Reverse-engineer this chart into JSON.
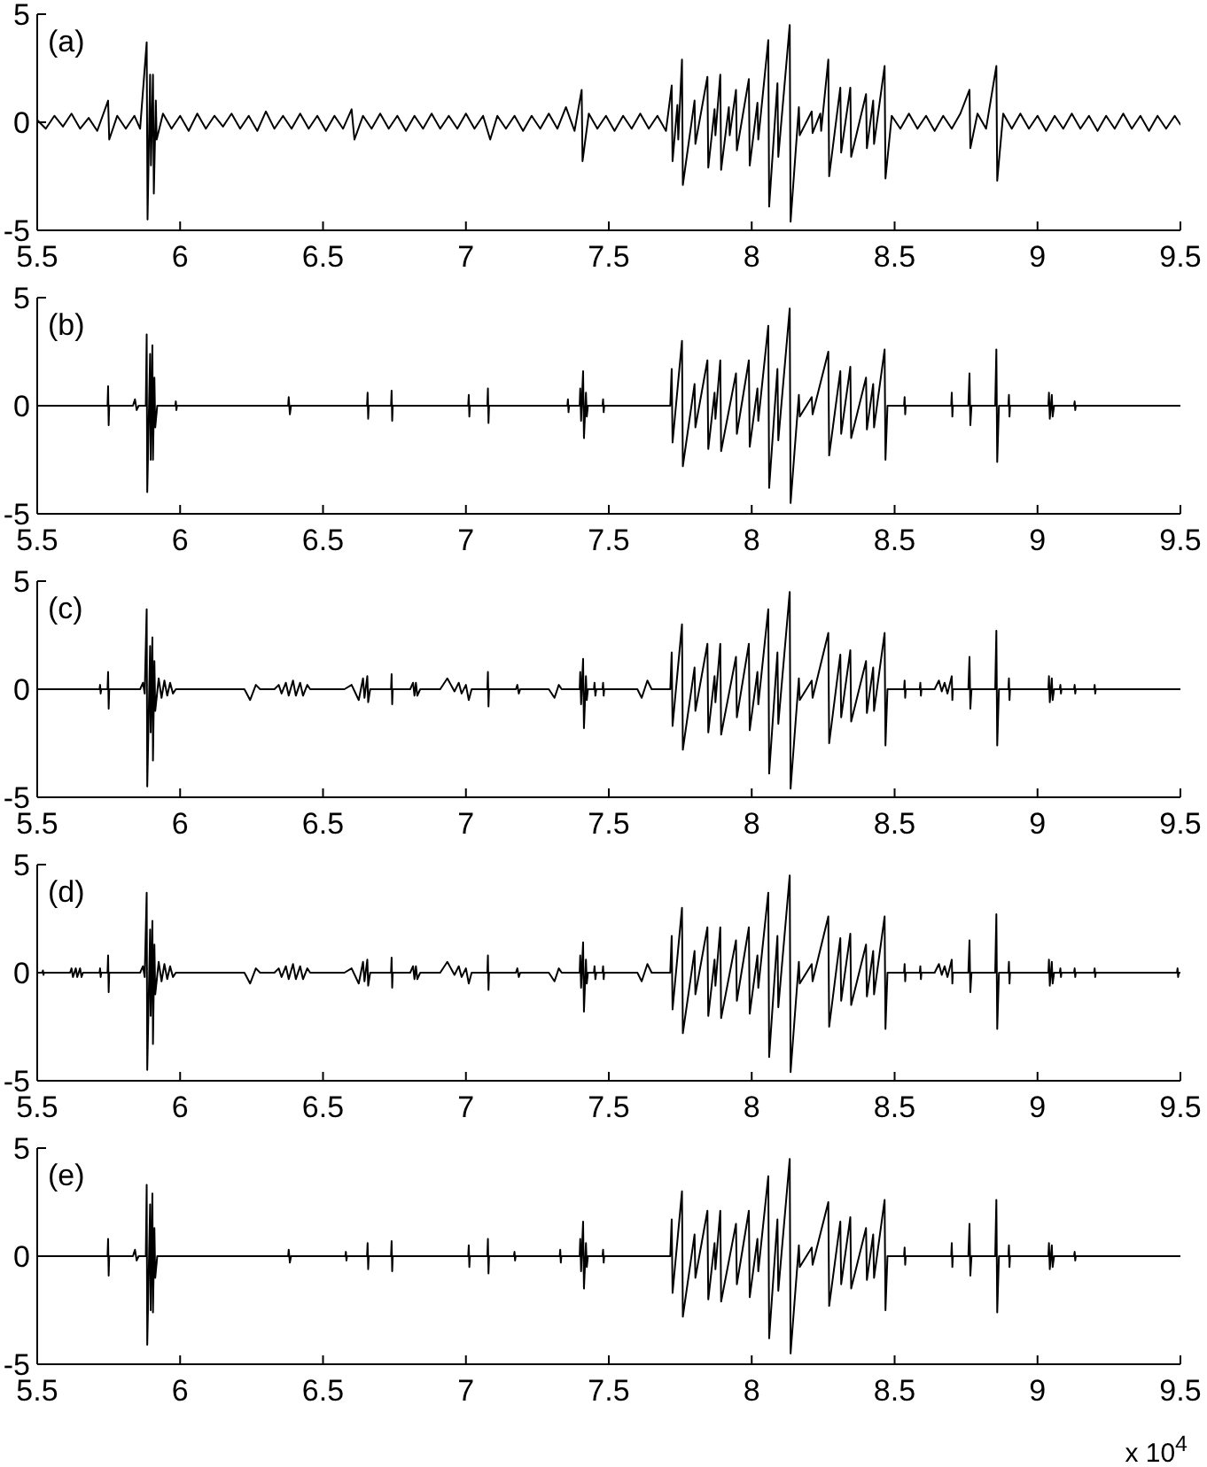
{
  "chart_data": [
    {
      "type": "line",
      "annotations": [
        "(a)"
      ],
      "color": "#000000",
      "xlim": [
        5.5,
        9.5
      ],
      "xticks": [
        5.5,
        6,
        6.5,
        7,
        7.5,
        8,
        8.5,
        9,
        9.5
      ],
      "ylim": [
        -5,
        5
      ],
      "yticks": [
        -5,
        0,
        5
      ],
      "x": [
        5.5,
        5.53,
        5.56,
        5.59,
        5.62,
        5.65,
        5.68,
        5.71,
        5.748,
        5.752,
        5.78,
        5.81,
        5.84,
        5.86,
        5.883,
        5.886,
        5.895,
        5.898,
        5.905,
        5.908,
        5.915,
        5.918,
        5.94,
        5.97,
        6,
        6.03,
        6.06,
        6.09,
        6.12,
        6.15,
        6.18,
        6.21,
        6.24,
        6.27,
        6.3,
        6.33,
        6.36,
        6.39,
        6.42,
        6.45,
        6.48,
        6.51,
        6.54,
        6.57,
        6.6,
        6.61,
        6.64,
        6.67,
        6.7,
        6.73,
        6.76,
        6.79,
        6.82,
        6.85,
        6.88,
        6.91,
        6.94,
        6.97,
        7,
        7.03,
        7.06,
        7.085,
        7.11,
        7.14,
        7.17,
        7.2,
        7.23,
        7.26,
        7.29,
        7.32,
        7.35,
        7.38,
        7.405,
        7.408,
        7.43,
        7.46,
        7.49,
        7.52,
        7.55,
        7.58,
        7.61,
        7.64,
        7.67,
        7.7,
        7.72,
        7.723,
        7.74,
        7.743,
        7.756,
        7.759,
        7.8,
        7.803,
        7.845,
        7.848,
        7.87,
        7.873,
        7.89,
        7.893,
        7.92,
        7.923,
        7.945,
        7.948,
        7.99,
        7.993,
        8.02,
        8.023,
        8.058,
        8.061,
        8.09,
        8.093,
        8.133,
        8.136,
        8.165,
        8.168,
        8.21,
        8.213,
        8.24,
        8.243,
        8.268,
        8.271,
        8.31,
        8.313,
        8.345,
        8.348,
        8.4,
        8.403,
        8.425,
        8.428,
        8.465,
        8.468,
        8.49,
        8.52,
        8.55,
        8.58,
        8.61,
        8.64,
        8.67,
        8.7,
        8.73,
        8.762,
        8.765,
        8.79,
        8.82,
        8.856,
        8.859,
        8.88,
        8.91,
        8.94,
        8.97,
        9,
        9.03,
        9.06,
        9.09,
        9.12,
        9.15,
        9.18,
        9.21,
        9.24,
        9.27,
        9.3,
        9.33,
        9.36,
        9.39,
        9.42,
        9.45,
        9.48,
        9.5
      ],
      "values": [
        0.1,
        -0.3,
        0.3,
        -0.2,
        0.4,
        -0.3,
        0.2,
        -0.4,
        1,
        -0.8,
        0.3,
        -0.3,
        0.3,
        -0.3,
        3.7,
        -4.5,
        2.2,
        -2,
        2.2,
        -3.3,
        1,
        -0.8,
        0.4,
        -0.3,
        0.3,
        -0.4,
        0.4,
        -0.3,
        0.3,
        -0.2,
        0.4,
        -0.3,
        0.3,
        -0.4,
        0.5,
        -0.3,
        0.3,
        -0.3,
        0.4,
        -0.3,
        0.3,
        -0.4,
        0.3,
        -0.3,
        0.6,
        -0.8,
        0.3,
        -0.3,
        0.4,
        -0.3,
        0.3,
        -0.4,
        0.3,
        -0.3,
        0.4,
        -0.3,
        0.3,
        -0.3,
        0.4,
        -0.3,
        0.3,
        -0.8,
        0.3,
        -0.3,
        0.3,
        -0.4,
        0.3,
        -0.3,
        0.4,
        -0.3,
        0.7,
        -0.4,
        1.5,
        -1.8,
        0.4,
        -0.3,
        0.3,
        -0.4,
        0.3,
        -0.3,
        0.4,
        -0.3,
        0.3,
        -0.4,
        1.7,
        -1.8,
        0.8,
        -0.8,
        2.9,
        -2.9,
        1,
        -1,
        2.1,
        -2.1,
        0.6,
        -0.6,
        2.2,
        -2.2,
        0.7,
        -0.6,
        1.5,
        -1.3,
        2,
        -2,
        0.9,
        -0.8,
        3.8,
        -3.9,
        1.8,
        -1.6,
        4.5,
        -4.6,
        0.7,
        -0.6,
        0.5,
        -0.5,
        0.4,
        -0.4,
        2.9,
        -2.5,
        1.6,
        -1.4,
        1.6,
        -1.6,
        1.3,
        -1.2,
        1,
        -1,
        2.6,
        -2.6,
        0.3,
        -0.3,
        0.4,
        -0.3,
        0.3,
        -0.4,
        0.3,
        -0.3,
        0.4,
        1.5,
        -1.2,
        0.4,
        -0.3,
        2.6,
        -2.7,
        0.4,
        -0.3,
        0.4,
        -0.3,
        0.3,
        -0.4,
        0.3,
        -0.3,
        0.4,
        -0.3,
        0.3,
        -0.4,
        0.3,
        -0.3,
        0.4,
        -0.3,
        0.3,
        -0.4,
        0.3,
        -0.3,
        0.3,
        -0.1
      ]
    },
    {
      "type": "line",
      "annotations": [
        "(b)"
      ],
      "color": "#000000",
      "xlim": [
        5.5,
        9.5
      ],
      "xticks": [
        5.5,
        6,
        6.5,
        7,
        7.5,
        8,
        8.5,
        9,
        9.5
      ],
      "ylim": [
        -5,
        5
      ],
      "yticks": [
        -5,
        0,
        5
      ],
      "x": [
        5.5,
        5.746,
        5.748,
        5.75,
        5.752,
        5.835,
        5.842,
        5.848,
        5.855,
        5.88,
        5.883,
        5.885,
        5.895,
        5.897,
        5.903,
        5.905,
        5.91,
        5.913,
        5.92,
        5.983,
        5.985,
        5.987,
        5.989,
        6.378,
        6.38,
        6.384,
        6.388,
        6.654,
        6.656,
        6.658,
        6.66,
        6.738,
        6.74,
        6.742,
        6.744,
        7.008,
        7.01,
        7.012,
        7.014,
        7.075,
        7.077,
        7.079,
        7.081,
        7.355,
        7.357,
        7.359,
        7.361,
        7.398,
        7.4,
        7.403,
        7.41,
        7.413,
        7.42,
        7.423,
        7.427,
        7.478,
        7.48,
        7.482,
        7.484,
        7.715,
        7.72,
        7.723,
        7.756,
        7.759,
        7.8,
        7.803,
        7.845,
        7.848,
        7.87,
        7.873,
        7.89,
        7.893,
        7.945,
        7.948,
        7.99,
        7.993,
        8.02,
        8.023,
        8.058,
        8.061,
        8.09,
        8.093,
        8.133,
        8.136,
        8.165,
        8.168,
        8.21,
        8.213,
        8.268,
        8.271,
        8.31,
        8.313,
        8.345,
        8.348,
        8.4,
        8.403,
        8.425,
        8.428,
        8.465,
        8.468,
        8.475,
        8.533,
        8.535,
        8.537,
        8.539,
        8.698,
        8.7,
        8.702,
        8.704,
        8.758,
        8.762,
        8.765,
        8.769,
        8.852,
        8.856,
        8.859,
        8.865,
        8.898,
        8.9,
        8.902,
        8.904,
        9.038,
        9.04,
        9.043,
        9.05,
        9.053,
        9.058,
        9.128,
        9.13,
        9.132,
        9.134,
        9.5
      ],
      "values": [
        0,
        0,
        0.9,
        -0.9,
        0,
        0,
        0.3,
        -0.2,
        0,
        0,
        3.3,
        -4,
        2.4,
        -2.5,
        2.8,
        -2.5,
        1.3,
        -1,
        0,
        0,
        0.2,
        -0.2,
        0,
        0,
        0.4,
        -0.4,
        0,
        0,
        0.6,
        -0.6,
        0,
        0,
        0.7,
        -0.7,
        0,
        0,
        0.5,
        -0.5,
        0,
        0,
        0.8,
        -0.8,
        0,
        0,
        0.3,
        -0.3,
        0,
        0,
        0.8,
        -0.7,
        1.6,
        -1.5,
        0.6,
        -0.5,
        0,
        0,
        0.3,
        -0.3,
        0,
        0,
        1.7,
        -1.7,
        3,
        -2.8,
        1,
        -1,
        2.1,
        -2,
        0.6,
        -0.6,
        2.1,
        -2.1,
        1.5,
        -1.3,
        2.1,
        -1.9,
        0.8,
        -0.7,
        3.7,
        -3.8,
        1.7,
        -1.6,
        4.5,
        -4.5,
        0.5,
        -0.5,
        0.4,
        -0.4,
        2.5,
        -2.3,
        1.6,
        -1.3,
        1.8,
        -1.5,
        1.3,
        -1.1,
        1,
        -1,
        2.6,
        -2.5,
        0,
        0,
        0.4,
        -0.4,
        0,
        0,
        0.6,
        -0.5,
        0,
        0,
        1.5,
        -0.9,
        0,
        0,
        2.6,
        -2.6,
        0,
        0,
        0.5,
        -0.5,
        0,
        0,
        0.6,
        -0.6,
        0.5,
        -0.5,
        0,
        0,
        0.2,
        -0.2,
        0,
        0
      ]
    },
    {
      "type": "line",
      "annotations": [
        "(c)"
      ],
      "color": "#000000",
      "xlim": [
        5.5,
        9.5
      ],
      "xticks": [
        5.5,
        6,
        6.5,
        7,
        7.5,
        8,
        8.5,
        9,
        9.5
      ],
      "ylim": [
        -5,
        5
      ],
      "yticks": [
        -5,
        0,
        5
      ],
      "x": [
        5.5,
        5.718,
        5.72,
        5.722,
        5.724,
        5.746,
        5.748,
        5.75,
        5.752,
        5.86,
        5.87,
        5.876,
        5.883,
        5.885,
        5.895,
        5.897,
        5.903,
        5.905,
        5.91,
        5.913,
        5.925,
        5.935,
        5.945,
        5.955,
        5.965,
        5.975,
        5.985,
        6.225,
        6.245,
        6.265,
        6.28,
        6.33,
        6.345,
        6.355,
        6.37,
        6.38,
        6.395,
        6.405,
        6.42,
        6.43,
        6.445,
        6.455,
        6.575,
        6.6,
        6.625,
        6.64,
        6.645,
        6.655,
        6.658,
        6.665,
        6.738,
        6.74,
        6.742,
        6.744,
        6.805,
        6.815,
        6.82,
        6.825,
        6.83,
        6.84,
        6.91,
        6.935,
        6.96,
        6.975,
        6.985,
        7,
        7.01,
        7.02,
        7.075,
        7.077,
        7.079,
        7.081,
        7.175,
        7.18,
        7.185,
        7.19,
        7.29,
        7.31,
        7.325,
        7.335,
        7.398,
        7.4,
        7.403,
        7.41,
        7.413,
        7.42,
        7.423,
        7.427,
        7.448,
        7.45,
        7.453,
        7.456,
        7.478,
        7.48,
        7.482,
        7.484,
        7.6,
        7.615,
        7.635,
        7.65,
        7.715,
        7.72,
        7.723,
        7.756,
        7.759,
        7.8,
        7.803,
        7.845,
        7.848,
        7.87,
        7.873,
        7.89,
        7.893,
        7.945,
        7.948,
        7.99,
        7.993,
        8.02,
        8.023,
        8.058,
        8.061,
        8.09,
        8.093,
        8.133,
        8.136,
        8.165,
        8.168,
        8.21,
        8.213,
        8.268,
        8.271,
        8.31,
        8.313,
        8.345,
        8.348,
        8.4,
        8.403,
        8.425,
        8.428,
        8.465,
        8.468,
        8.475,
        8.533,
        8.535,
        8.537,
        8.539,
        8.588,
        8.59,
        8.592,
        8.594,
        8.64,
        8.655,
        8.665,
        8.675,
        8.685,
        8.7,
        8.702,
        8.704,
        8.758,
        8.762,
        8.765,
        8.769,
        8.852,
        8.856,
        8.859,
        8.865,
        8.898,
        8.9,
        8.902,
        8.904,
        9.038,
        9.04,
        9.043,
        9.05,
        9.053,
        9.058,
        9.078,
        9.08,
        9.082,
        9.084,
        9.128,
        9.13,
        9.132,
        9.134,
        9.198,
        9.2,
        9.202,
        9.204,
        9.5
      ],
      "values": [
        0,
        0,
        0.2,
        -0.2,
        0,
        0,
        0.8,
        -0.9,
        0,
        0,
        0.3,
        -0.2,
        3.7,
        -4.5,
        2,
        -2,
        2.4,
        -3.3,
        1.3,
        -1,
        0.5,
        -0.4,
        0.4,
        -0.3,
        0.3,
        -0.2,
        0,
        0,
        -0.5,
        0.2,
        0,
        0,
        0.2,
        -0.2,
        0.3,
        -0.3,
        0.4,
        -0.3,
        0.3,
        -0.3,
        0.2,
        0,
        0,
        0.2,
        -0.5,
        0.5,
        -0.4,
        0.6,
        -0.6,
        0,
        0,
        0.7,
        -0.7,
        0,
        0,
        0.3,
        -0.3,
        0.3,
        -0.3,
        0,
        0,
        0.5,
        -0.1,
        0.3,
        -0.2,
        0.2,
        -0.5,
        0,
        0,
        0.8,
        -0.8,
        0,
        0,
        0.2,
        -0.2,
        0,
        0,
        -0.4,
        0.2,
        0,
        0,
        0.8,
        -0.7,
        1.4,
        -1.8,
        0.6,
        -0.5,
        0,
        0,
        0.3,
        -0.3,
        0,
        0,
        0.3,
        -0.3,
        0,
        0,
        -0.4,
        0.4,
        0,
        0,
        1.7,
        -1.7,
        3,
        -2.8,
        1,
        -1,
        2.1,
        -2,
        0.6,
        -0.6,
        2.1,
        -2.1,
        1.5,
        -1.3,
        2.1,
        -1.9,
        0.8,
        -0.7,
        3.7,
        -3.9,
        1.7,
        -1.6,
        4.5,
        -4.6,
        0.5,
        -0.5,
        0.4,
        -0.4,
        2.6,
        -2.5,
        1.6,
        -1.3,
        1.8,
        -1.5,
        1.3,
        -1.1,
        1,
        -1,
        2.6,
        -2.6,
        0,
        0,
        0.4,
        -0.4,
        0,
        0,
        0.3,
        -0.3,
        0,
        0,
        0.4,
        -0.1,
        0.3,
        -0.2,
        0.6,
        -0.5,
        0,
        0,
        1.5,
        -0.9,
        0,
        0,
        2.7,
        -2.6,
        0,
        0,
        0.5,
        -0.5,
        0,
        0,
        0.6,
        -0.6,
        0.5,
        -0.5,
        0,
        0,
        0.2,
        -0.2,
        0,
        0,
        0.2,
        -0.2,
        0,
        0,
        0.2,
        -0.2,
        0,
        0
      ]
    },
    {
      "type": "line",
      "annotations": [
        "(d)"
      ],
      "color": "#000000",
      "xlim": [
        5.5,
        9.5
      ],
      "xticks": [
        5.5,
        6,
        6.5,
        7,
        7.5,
        8,
        8.5,
        9,
        9.5
      ],
      "ylim": [
        -5,
        5
      ],
      "yticks": [
        -5,
        0,
        5
      ],
      "x": [
        5.5,
        5.518,
        5.52,
        5.522,
        5.524,
        5.615,
        5.62,
        5.625,
        5.635,
        5.64,
        5.65,
        5.655,
        5.66,
        5.718,
        5.72,
        5.722,
        5.724,
        5.746,
        5.748,
        5.75,
        5.752,
        5.86,
        5.87,
        5.876,
        5.883,
        5.885,
        5.895,
        5.897,
        5.903,
        5.905,
        5.91,
        5.913,
        5.925,
        5.935,
        5.945,
        5.955,
        5.965,
        5.975,
        5.985,
        6.225,
        6.245,
        6.265,
        6.28,
        6.33,
        6.345,
        6.355,
        6.37,
        6.38,
        6.395,
        6.405,
        6.42,
        6.43,
        6.445,
        6.455,
        6.575,
        6.6,
        6.625,
        6.64,
        6.645,
        6.655,
        6.658,
        6.665,
        6.738,
        6.74,
        6.742,
        6.744,
        6.805,
        6.815,
        6.82,
        6.825,
        6.83,
        6.84,
        6.91,
        6.935,
        6.96,
        6.975,
        6.985,
        7,
        7.01,
        7.02,
        7.075,
        7.077,
        7.079,
        7.081,
        7.175,
        7.18,
        7.185,
        7.19,
        7.29,
        7.31,
        7.325,
        7.335,
        7.398,
        7.4,
        7.403,
        7.41,
        7.413,
        7.42,
        7.423,
        7.427,
        7.448,
        7.45,
        7.453,
        7.456,
        7.478,
        7.48,
        7.482,
        7.484,
        7.6,
        7.615,
        7.635,
        7.65,
        7.715,
        7.72,
        7.723,
        7.756,
        7.759,
        7.8,
        7.803,
        7.845,
        7.848,
        7.87,
        7.873,
        7.89,
        7.893,
        7.945,
        7.948,
        7.99,
        7.993,
        8.02,
        8.023,
        8.058,
        8.061,
        8.09,
        8.093,
        8.133,
        8.136,
        8.165,
        8.168,
        8.21,
        8.213,
        8.268,
        8.271,
        8.31,
        8.313,
        8.345,
        8.348,
        8.4,
        8.403,
        8.425,
        8.428,
        8.465,
        8.468,
        8.475,
        8.533,
        8.535,
        8.537,
        8.539,
        8.588,
        8.59,
        8.592,
        8.594,
        8.64,
        8.655,
        8.665,
        8.675,
        8.685,
        8.7,
        8.702,
        8.704,
        8.758,
        8.762,
        8.765,
        8.769,
        8.852,
        8.856,
        8.859,
        8.865,
        8.898,
        8.9,
        8.902,
        8.904,
        9.038,
        9.04,
        9.043,
        9.05,
        9.053,
        9.058,
        9.078,
        9.08,
        9.082,
        9.084,
        9.128,
        9.13,
        9.132,
        9.134,
        9.198,
        9.2,
        9.202,
        9.204,
        9.488,
        9.49,
        9.492,
        9.494,
        9.5
      ],
      "values": [
        0,
        0,
        0.1,
        -0.1,
        0,
        0,
        0.2,
        -0.2,
        0.2,
        -0.2,
        0.2,
        -0.2,
        0,
        0,
        0.2,
        -0.2,
        0,
        0,
        0.8,
        -0.9,
        0,
        0,
        0.3,
        -0.2,
        3.7,
        -4.5,
        2,
        -2,
        2.4,
        -3.3,
        1.3,
        -1,
        0.5,
        -0.4,
        0.4,
        -0.3,
        0.3,
        -0.2,
        0,
        0,
        -0.5,
        0.2,
        0,
        0,
        0.2,
        -0.2,
        0.3,
        -0.3,
        0.4,
        -0.3,
        0.3,
        -0.3,
        0.2,
        0,
        0,
        0.2,
        -0.5,
        0.5,
        -0.4,
        0.6,
        -0.6,
        0,
        0,
        0.7,
        -0.7,
        0,
        0,
        0.3,
        -0.3,
        0.3,
        -0.3,
        0,
        0,
        0.5,
        -0.1,
        0.3,
        -0.2,
        0.2,
        -0.5,
        0,
        0,
        0.8,
        -0.8,
        0,
        0,
        0.2,
        -0.2,
        0,
        0,
        -0.4,
        0.2,
        0,
        0,
        0.8,
        -0.7,
        1.4,
        -1.8,
        0.6,
        -0.5,
        0,
        0,
        0.3,
        -0.3,
        0,
        0,
        0.3,
        -0.3,
        0,
        0,
        -0.4,
        0.4,
        0,
        0,
        1.7,
        -1.7,
        3,
        -2.8,
        1,
        -1,
        2.1,
        -2,
        0.6,
        -0.6,
        2.1,
        -2.1,
        1.5,
        -1.3,
        2.1,
        -1.9,
        0.8,
        -0.7,
        3.7,
        -3.9,
        1.7,
        -1.6,
        4.5,
        -4.6,
        0.5,
        -0.5,
        0.4,
        -0.4,
        2.6,
        -2.5,
        1.6,
        -1.3,
        1.8,
        -1.5,
        1.3,
        -1.1,
        1,
        -1,
        2.6,
        -2.6,
        0,
        0,
        0.4,
        -0.4,
        0,
        0,
        0.3,
        -0.3,
        0,
        0,
        0.4,
        -0.1,
        0.3,
        -0.2,
        0.6,
        -0.5,
        0,
        0,
        1.5,
        -0.9,
        0,
        0,
        2.7,
        -2.6,
        0,
        0,
        0.5,
        -0.5,
        0,
        0,
        0.6,
        -0.6,
        0.5,
        -0.5,
        0,
        0,
        0.2,
        -0.2,
        0,
        0,
        0.2,
        -0.2,
        0,
        0,
        0.2,
        -0.2,
        0,
        0,
        0.2,
        -0.2,
        0,
        0
      ]
    },
    {
      "type": "line",
      "annotations": [
        "(e)"
      ],
      "xlabel": "x 10$^{4}$",
      "color": "#000000",
      "xlim": [
        5.5,
        9.5
      ],
      "xticks": [
        5.5,
        6,
        6.5,
        7,
        7.5,
        8,
        8.5,
        9,
        9.5
      ],
      "ylim": [
        -5,
        5
      ],
      "yticks": [
        -5,
        0,
        5
      ],
      "x": [
        5.5,
        5.746,
        5.748,
        5.75,
        5.752,
        5.835,
        5.842,
        5.848,
        5.855,
        5.88,
        5.883,
        5.885,
        5.895,
        5.897,
        5.903,
        5.905,
        5.91,
        5.913,
        5.92,
        6.378,
        6.38,
        6.384,
        6.388,
        6.578,
        6.58,
        6.582,
        6.584,
        6.654,
        6.656,
        6.658,
        6.66,
        6.738,
        6.74,
        6.742,
        6.744,
        7.008,
        7.01,
        7.012,
        7.014,
        7.075,
        7.077,
        7.079,
        7.081,
        7.168,
        7.17,
        7.172,
        7.174,
        7.328,
        7.33,
        7.332,
        7.334,
        7.398,
        7.4,
        7.403,
        7.41,
        7.413,
        7.42,
        7.423,
        7.427,
        7.478,
        7.48,
        7.482,
        7.484,
        7.715,
        7.72,
        7.723,
        7.756,
        7.759,
        7.8,
        7.803,
        7.845,
        7.848,
        7.87,
        7.873,
        7.89,
        7.893,
        7.945,
        7.948,
        7.99,
        7.993,
        8.02,
        8.023,
        8.058,
        8.061,
        8.09,
        8.093,
        8.133,
        8.136,
        8.165,
        8.168,
        8.21,
        8.213,
        8.268,
        8.271,
        8.31,
        8.313,
        8.345,
        8.348,
        8.4,
        8.403,
        8.425,
        8.428,
        8.465,
        8.468,
        8.475,
        8.533,
        8.535,
        8.537,
        8.539,
        8.698,
        8.7,
        8.702,
        8.704,
        8.758,
        8.762,
        8.765,
        8.769,
        8.852,
        8.856,
        8.859,
        8.865,
        8.898,
        8.9,
        8.902,
        8.904,
        9.038,
        9.04,
        9.043,
        9.05,
        9.053,
        9.058,
        9.128,
        9.13,
        9.132,
        9.134,
        9.5
      ],
      "values": [
        0,
        0,
        0.8,
        -0.9,
        0,
        0,
        0.3,
        -0.2,
        0,
        0,
        3.3,
        -4.1,
        2.4,
        -2.5,
        2.9,
        -2.6,
        1.3,
        -1,
        0,
        0,
        0.3,
        -0.3,
        0,
        0,
        0.2,
        -0.2,
        0,
        0,
        0.6,
        -0.6,
        0,
        0,
        0.7,
        -0.7,
        0,
        0,
        0.5,
        -0.5,
        0,
        0,
        0.8,
        -0.8,
        0,
        0,
        0.2,
        -0.2,
        0,
        0,
        0.3,
        -0.3,
        0,
        0,
        0.8,
        -0.7,
        1.6,
        -1.5,
        0.6,
        -0.5,
        0,
        0,
        0.3,
        -0.3,
        0,
        0,
        1.7,
        -1.7,
        3,
        -2.8,
        1,
        -1,
        2.1,
        -2,
        0.6,
        -0.6,
        2.1,
        -2.1,
        1.5,
        -1.3,
        2.1,
        -1.9,
        0.8,
        -0.7,
        3.7,
        -3.8,
        1.7,
        -1.6,
        4.5,
        -4.5,
        0.5,
        -0.5,
        0.4,
        -0.4,
        2.5,
        -2.3,
        1.6,
        -1.3,
        1.8,
        -1.5,
        1.3,
        -1.1,
        1,
        -1,
        2.6,
        -2.5,
        0,
        0,
        0.4,
        -0.4,
        0,
        0,
        0.6,
        -0.5,
        0,
        0,
        1.5,
        -0.9,
        0,
        0,
        2.6,
        -2.6,
        0,
        0,
        0.5,
        -0.5,
        0,
        0,
        0.6,
        -0.6,
        0.5,
        -0.5,
        0,
        0,
        0.2,
        -0.2,
        0,
        0
      ]
    }
  ]
}
